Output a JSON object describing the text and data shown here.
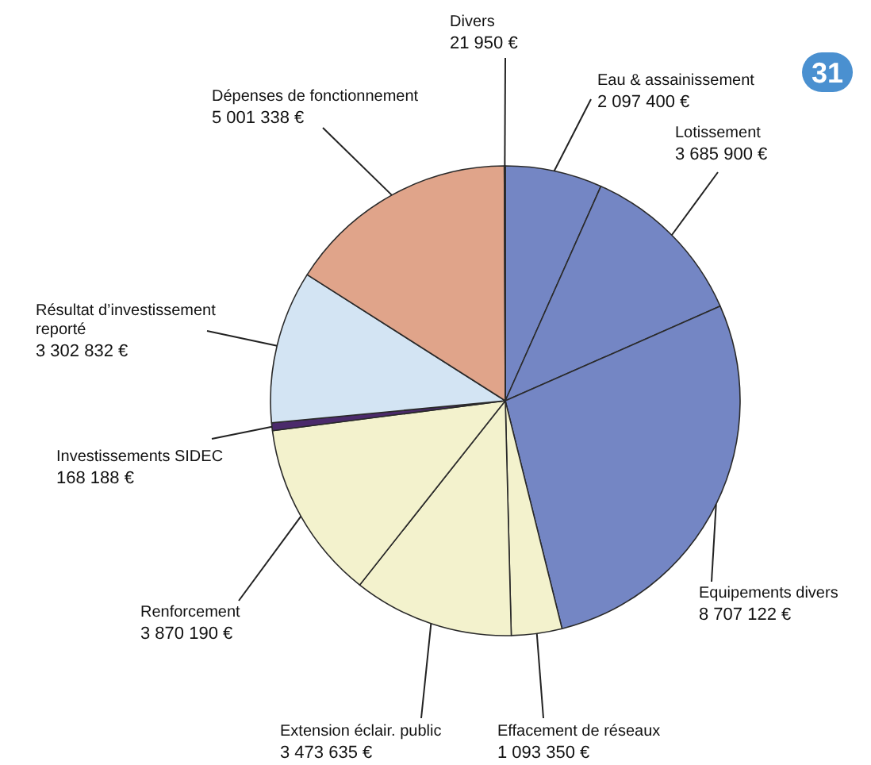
{
  "chart_data": {
    "type": "pie",
    "categories": [
      "Eau & assainissement",
      "Lotissement",
      "Equipements divers",
      "Effacement de réseaux",
      "Extension éclair. public",
      "Renforcement",
      "Investissements SIDEC",
      "Résultat d’investissement reporté",
      "Dépenses de fonctionnement",
      "Divers"
    ],
    "values": [
      2097400,
      3685900,
      8707122,
      1093350,
      3473635,
      3870190,
      168188,
      3302832,
      5001338,
      21950
    ],
    "value_labels": [
      "2 097 400 €",
      "3 685 900 €",
      "8 707 122 €",
      "1 093 350 €",
      "3 473 635 €",
      "3 870 190 €",
      "168 188 €",
      "3 302 832 €",
      "5 001 338 €",
      "21 950 €"
    ],
    "colors": [
      "#7486c4",
      "#7486c4",
      "#7486c4",
      "#f3f2cd",
      "#f3f2cd",
      "#f3f2cd",
      "#4b2a6b",
      "#d3e4f3",
      "#e0a48a",
      "#4b2a6b"
    ],
    "annotations": [
      "31"
    ]
  }
}
